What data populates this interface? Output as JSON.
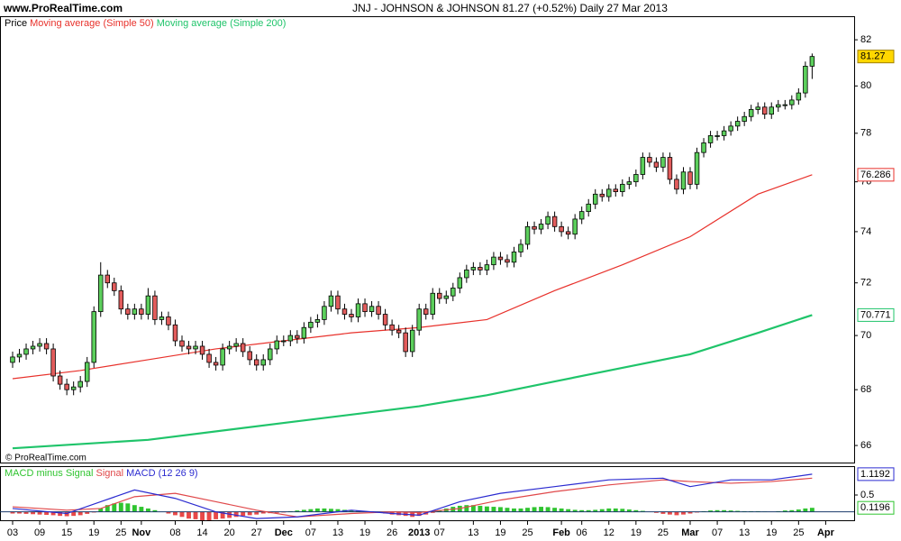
{
  "chart_data": [
    {
      "type": "candlestick",
      "source": "www.ProRealTime.com",
      "title": "JNJ - JOHNSON & JOHNSON   81.27 (+0.52%)   Daily  27 Mar 2013",
      "watermark": "© ProRealTime.com",
      "legend_label": "Price",
      "up_color": "#5ccf5c",
      "down_color": "#e25c5c",
      "open": [
        69.0,
        69.2,
        69.3,
        69.5,
        69.6,
        69.7,
        69.5,
        68.5,
        68.2,
        68.0,
        68.1,
        68.3,
        69.0,
        70.9,
        72.3,
        72.0,
        71.7,
        71.0,
        70.8,
        71.0,
        70.8,
        71.5,
        70.6,
        70.7,
        70.4,
        69.8,
        69.6,
        69.5,
        69.6,
        69.3,
        69.0,
        68.9,
        69.5,
        69.6,
        69.7,
        69.4,
        69.1,
        68.9,
        69.1,
        69.5,
        69.8,
        69.8,
        70.0,
        69.9,
        70.3,
        70.5,
        70.6,
        71.1,
        71.5,
        71.0,
        70.8,
        70.7,
        71.2,
        70.9,
        71.1,
        70.8,
        70.4,
        70.2,
        70.1,
        69.4,
        70.2,
        71.0,
        70.8,
        71.6,
        71.4,
        71.5,
        71.8,
        72.2,
        72.5,
        72.6,
        72.5,
        72.7,
        73.0,
        72.9,
        72.8,
        73.2,
        73.5,
        74.2,
        74.1,
        74.3,
        74.6,
        74.2,
        74.0,
        73.9,
        74.5,
        74.8,
        75.1,
        75.5,
        75.4,
        75.7,
        75.6,
        75.9,
        76.0,
        76.3,
        77.0,
        76.8,
        76.6,
        77.0,
        76.1,
        75.7,
        76.4,
        75.9,
        77.2,
        77.6,
        77.9,
        77.9,
        78.1,
        78.3,
        78.5,
        78.7,
        79.0,
        79.1,
        78.8,
        79.1,
        79.2,
        79.2,
        79.4,
        79.7,
        80.85
      ],
      "high": [
        69.4,
        69.5,
        69.7,
        69.8,
        69.9,
        69.9,
        69.7,
        68.7,
        68.4,
        68.3,
        68.5,
        69.2,
        71.1,
        72.8,
        72.5,
        72.2,
        71.9,
        71.2,
        71.2,
        71.2,
        71.8,
        71.7,
        70.9,
        70.9,
        70.6,
        70.0,
        69.8,
        69.8,
        69.8,
        69.5,
        69.2,
        69.7,
        69.8,
        69.9,
        69.9,
        69.6,
        69.3,
        69.3,
        69.7,
        70.0,
        70.0,
        70.2,
        70.2,
        70.5,
        70.7,
        70.8,
        71.3,
        71.7,
        71.7,
        71.2,
        71.0,
        71.4,
        71.4,
        71.3,
        71.3,
        71.0,
        70.6,
        70.4,
        70.3,
        70.4,
        71.2,
        71.2,
        71.8,
        71.8,
        71.7,
        72.0,
        72.4,
        72.7,
        72.8,
        72.8,
        72.9,
        73.2,
        73.2,
        73.1,
        73.4,
        73.7,
        74.4,
        74.4,
        74.5,
        74.8,
        74.8,
        74.4,
        74.2,
        74.7,
        75.0,
        75.3,
        75.7,
        75.7,
        75.9,
        75.9,
        76.1,
        76.2,
        76.5,
        77.2,
        77.2,
        77.0,
        77.2,
        77.2,
        76.3,
        76.6,
        76.6,
        77.4,
        77.8,
        78.1,
        78.1,
        78.3,
        78.5,
        78.7,
        78.9,
        79.2,
        79.3,
        79.3,
        79.3,
        79.4,
        79.4,
        79.6,
        79.9,
        81.05,
        81.4
      ],
      "low": [
        68.8,
        69.0,
        69.1,
        69.3,
        69.4,
        69.3,
        68.3,
        68.0,
        67.8,
        67.8,
        67.9,
        68.1,
        68.8,
        70.7,
        71.8,
        71.5,
        70.8,
        70.6,
        70.6,
        70.6,
        70.6,
        70.4,
        70.4,
        70.2,
        69.6,
        69.4,
        69.3,
        69.3,
        69.1,
        68.8,
        68.7,
        68.7,
        69.3,
        69.4,
        69.2,
        68.9,
        68.7,
        68.7,
        68.9,
        69.3,
        69.6,
        69.6,
        69.7,
        69.7,
        70.1,
        70.3,
        70.4,
        70.9,
        70.8,
        70.6,
        70.5,
        70.5,
        70.7,
        70.7,
        70.6,
        70.2,
        70.0,
        69.9,
        69.2,
        69.2,
        70.0,
        70.6,
        70.6,
        71.2,
        71.2,
        71.3,
        71.6,
        72.0,
        72.3,
        72.3,
        72.3,
        72.5,
        72.7,
        72.6,
        72.6,
        73.0,
        73.3,
        73.9,
        73.9,
        74.1,
        74.0,
        73.8,
        73.7,
        73.7,
        74.3,
        74.6,
        74.9,
        75.2,
        75.2,
        75.4,
        75.4,
        75.7,
        75.8,
        76.1,
        76.6,
        76.4,
        76.4,
        75.9,
        75.5,
        75.5,
        75.7,
        75.7,
        77.0,
        77.4,
        77.7,
        77.7,
        77.9,
        78.1,
        78.3,
        78.5,
        78.8,
        78.6,
        78.6,
        78.9,
        79.0,
        79.0,
        79.2,
        79.5,
        80.3
      ],
      "close": [
        69.2,
        69.3,
        69.5,
        69.6,
        69.7,
        69.5,
        68.5,
        68.2,
        68.0,
        68.1,
        68.3,
        69.0,
        70.9,
        72.3,
        72.0,
        71.7,
        71.0,
        70.8,
        71.0,
        70.8,
        71.5,
        70.6,
        70.7,
        70.4,
        69.8,
        69.6,
        69.5,
        69.6,
        69.3,
        69.0,
        68.9,
        69.5,
        69.6,
        69.7,
        69.4,
        69.1,
        68.9,
        69.1,
        69.5,
        69.8,
        69.8,
        70.0,
        69.9,
        70.3,
        70.5,
        70.6,
        71.1,
        71.5,
        71.0,
        70.8,
        70.7,
        71.2,
        70.9,
        71.1,
        70.8,
        70.4,
        70.2,
        70.1,
        69.4,
        70.2,
        71.0,
        70.8,
        71.6,
        71.4,
        71.5,
        71.8,
        72.2,
        72.5,
        72.6,
        72.5,
        72.7,
        73.0,
        72.9,
        72.8,
        73.2,
        73.5,
        74.2,
        74.1,
        74.3,
        74.6,
        74.2,
        74.0,
        73.9,
        74.5,
        74.8,
        75.1,
        75.5,
        75.4,
        75.7,
        75.6,
        75.9,
        76.0,
        76.3,
        77.0,
        76.8,
        76.6,
        77.0,
        76.1,
        75.7,
        76.4,
        75.9,
        77.2,
        77.6,
        77.9,
        77.9,
        78.1,
        78.3,
        78.5,
        78.7,
        79.0,
        79.1,
        78.8,
        79.1,
        79.2,
        79.2,
        79.4,
        79.7,
        80.85,
        81.27
      ],
      "series": [
        {
          "name": "Moving average (Simple 50)",
          "color": "#e8312b",
          "x": [
            0,
            10,
            20,
            30,
            40,
            50,
            60,
            70,
            80,
            90,
            100,
            110,
            118
          ],
          "values": [
            68.4,
            68.7,
            69.1,
            69.5,
            69.8,
            70.1,
            70.3,
            70.6,
            71.7,
            72.7,
            73.8,
            75.5,
            76.286
          ]
        },
        {
          "name": "Moving average (Simple 200)",
          "color": "#1fc46a",
          "x": [
            0,
            20,
            40,
            60,
            70,
            80,
            90,
            100,
            110,
            118
          ],
          "values": [
            65.9,
            66.2,
            66.8,
            67.4,
            67.8,
            68.3,
            68.8,
            69.3,
            70.1,
            70.771
          ]
        }
      ],
      "log_scale": true,
      "ylim": [
        65.4,
        83.0
      ],
      "yticks": [
        66,
        68,
        70,
        72,
        74,
        76,
        78,
        80,
        82
      ],
      "xlim": [
        -1.86,
        124.2
      ],
      "xticks": [
        {
          "value": 0,
          "label": "03"
        },
        {
          "value": 4,
          "label": "09"
        },
        {
          "value": 8,
          "label": "15"
        },
        {
          "value": 12,
          "label": "19"
        },
        {
          "value": 16,
          "label": "25"
        },
        {
          "value": 19,
          "label": "Nov"
        },
        {
          "value": 24,
          "label": "08"
        },
        {
          "value": 28,
          "label": "14"
        },
        {
          "value": 32,
          "label": "20"
        },
        {
          "value": 36,
          "label": "27"
        },
        {
          "value": 40,
          "label": "Dec"
        },
        {
          "value": 44,
          "label": "07"
        },
        {
          "value": 48,
          "label": "13"
        },
        {
          "value": 52,
          "label": "19"
        },
        {
          "value": 56,
          "label": "26"
        },
        {
          "value": 60,
          "label": "2013"
        },
        {
          "value": 63,
          "label": "07"
        },
        {
          "value": 68,
          "label": "13"
        },
        {
          "value": 72,
          "label": "19"
        },
        {
          "value": 76,
          "label": "25"
        },
        {
          "value": 81,
          "label": "Feb"
        },
        {
          "value": 84,
          "label": "06"
        },
        {
          "value": 88,
          "label": "12"
        },
        {
          "value": 92,
          "label": "19"
        },
        {
          "value": 96,
          "label": "25"
        },
        {
          "value": 100,
          "label": "Mar"
        },
        {
          "value": 104,
          "label": "07"
        },
        {
          "value": 108,
          "label": "13"
        },
        {
          "value": 112,
          "label": "19"
        },
        {
          "value": 116,
          "label": "25"
        },
        {
          "value": 120,
          "label": "Apr"
        }
      ]
    },
    {
      "type": "macd",
      "histogram": {
        "name": "MACD minus Signal",
        "color": "#2fc42f",
        "negative_color": "#e84848",
        "values": [
          -0.05,
          -0.05,
          -0.06,
          -0.07,
          -0.08,
          -0.09,
          -0.1,
          -0.12,
          -0.13,
          -0.12,
          -0.1,
          -0.06,
          -0.02,
          0.1,
          0.2,
          0.25,
          0.27,
          0.25,
          0.2,
          0.15,
          0.1,
          0.05,
          0.0,
          -0.05,
          -0.1,
          -0.15,
          -0.2,
          -0.22,
          -0.25,
          -0.25,
          -0.22,
          -0.2,
          -0.18,
          -0.15,
          -0.12,
          -0.1,
          -0.08,
          -0.05,
          -0.04,
          -0.03,
          -0.02,
          0.02,
          0.04,
          0.06,
          0.08,
          0.1,
          0.1,
          0.09,
          0.08,
          0.06,
          0.05,
          0.03,
          0.02,
          0.01,
          -0.02,
          -0.05,
          -0.08,
          -0.1,
          -0.12,
          -0.15,
          -0.12,
          -0.08,
          -0.03,
          0.05,
          0.1,
          0.15,
          0.18,
          0.2,
          0.2,
          0.18,
          0.16,
          0.15,
          0.14,
          0.12,
          0.1,
          0.1,
          0.12,
          0.14,
          0.15,
          0.14,
          0.12,
          0.1,
          0.08,
          0.06,
          0.05,
          0.05,
          0.06,
          0.08,
          0.1,
          0.1,
          0.09,
          0.07,
          0.05,
          0.03,
          0.0,
          -0.03,
          -0.06,
          -0.08,
          -0.1,
          -0.08,
          -0.05,
          -0.02,
          0.02,
          0.04,
          0.05,
          0.05,
          0.04,
          0.03,
          0.02,
          0.02,
          0.02,
          0.01,
          0.0,
          0.02,
          0.04,
          0.05,
          0.07,
          0.1,
          0.1196
        ]
      },
      "series": [
        {
          "name": "Signal",
          "color": "#e0484a",
          "x": [
            0,
            8,
            13,
            18,
            24,
            30,
            36,
            42,
            50,
            56,
            60,
            66,
            72,
            80,
            88,
            96,
            100,
            106,
            112,
            118
          ],
          "values": [
            0.15,
            0.05,
            0.1,
            0.45,
            0.55,
            0.3,
            0.05,
            -0.15,
            -0.05,
            0.0,
            -0.02,
            0.1,
            0.35,
            0.6,
            0.8,
            0.95,
            0.9,
            0.85,
            0.9,
            1.0
          ]
        },
        {
          "name": "MACD (12 26 9)",
          "color": "#2b2bd0",
          "x": [
            0,
            8,
            13,
            18,
            24,
            30,
            36,
            42,
            50,
            56,
            60,
            66,
            72,
            80,
            88,
            96,
            100,
            106,
            112,
            118
          ],
          "values": [
            0.1,
            -0.05,
            0.3,
            0.65,
            0.4,
            0.0,
            -0.2,
            -0.15,
            0.05,
            -0.05,
            -0.1,
            0.3,
            0.55,
            0.75,
            0.95,
            1.0,
            0.75,
            0.95,
            0.95,
            1.1192
          ]
        }
      ],
      "ylim": [
        -0.25,
        1.33
      ],
      "yticks": [
        0.5
      ]
    }
  ]
}
